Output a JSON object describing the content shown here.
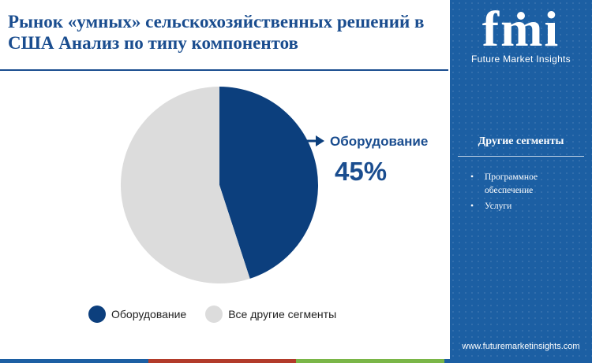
{
  "title": "Рынок «умных» сельскохозяйственных решений в США Анализ  по типу компонентов",
  "brand": {
    "logo_text": "fmi",
    "tagline": "Future Market Insights",
    "url": "www.futuremarketinsights.com"
  },
  "sidebar": {
    "heading": "Другие сегменты",
    "items": [
      {
        "label": "Программное обеспечение"
      },
      {
        "label": "Услуги"
      }
    ]
  },
  "colors": {
    "primary": "#0c3f7d",
    "other": "#dcdcdc",
    "accent_text": "#1a4d8f",
    "sidebar": "#1c5fa3",
    "bottom_bar": [
      "#1c5fa3",
      "#b23b2a",
      "#7ab648",
      "#1c5fa3"
    ]
  },
  "callout": {
    "label": "Оборудование",
    "value": "45%"
  },
  "chart_data": {
    "type": "pie",
    "slices": [
      {
        "label": "Оборудование",
        "value": 45,
        "color": "#0c3f7d"
      },
      {
        "label": "Все другие сегменты",
        "value": 55,
        "color": "#dcdcdc"
      }
    ],
    "legend": "bottom"
  }
}
